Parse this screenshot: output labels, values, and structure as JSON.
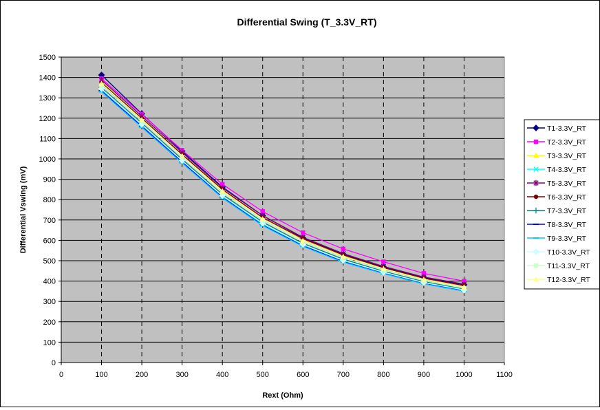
{
  "chart_data": {
    "type": "line",
    "title": "Differential Swing (T_3.3V_RT)",
    "xlabel": "Rext (Ohm)",
    "ylabel": "Differential Vswing (mV)",
    "xlim": [
      0,
      1100
    ],
    "ylim": [
      0,
      1500
    ],
    "x_ticks": [
      "0",
      "100",
      "200",
      "300",
      "400",
      "500",
      "600",
      "700",
      "800",
      "900",
      "1000",
      "1100"
    ],
    "y_ticks": [
      "0",
      "100",
      "200",
      "300",
      "400",
      "500",
      "600",
      "700",
      "800",
      "900",
      "1000",
      "1100",
      "1200",
      "1300",
      "1400",
      "1500"
    ],
    "grid": true,
    "legend_position": "right",
    "plot_background": "#c0c0c0",
    "x": [
      100,
      200,
      300,
      400,
      500,
      600,
      700,
      800,
      900,
      1000
    ],
    "series": [
      {
        "name": "T1-3.3V_RT",
        "color": "#000080",
        "marker": "diamond",
        "values": [
          1412,
          1222,
          1038,
          862,
          722,
          612,
          532,
          470,
          418,
          382
        ]
      },
      {
        "name": "T2-3.3V_RT",
        "color": "#ff00ff",
        "marker": "square",
        "values": [
          1395,
          1220,
          1043,
          876,
          742,
          638,
          558,
          495,
          438,
          400
        ]
      },
      {
        "name": "T3-3.3V_RT",
        "color": "#ffff00",
        "marker": "triangle",
        "values": [
          1378,
          1198,
          1022,
          848,
          712,
          606,
          526,
          465,
          412,
          377
        ]
      },
      {
        "name": "T4-3.3V_RT",
        "color": "#00ffff",
        "marker": "x",
        "values": [
          1342,
          1168,
          990,
          818,
          680,
          578,
          500,
          443,
          394,
          358
        ]
      },
      {
        "name": "T5-3.3V_RT",
        "color": "#800080",
        "marker": "star",
        "values": [
          1388,
          1210,
          1032,
          858,
          722,
          615,
          535,
          472,
          420,
          385
        ]
      },
      {
        "name": "T6-3.3V_RT",
        "color": "#800000",
        "marker": "circle",
        "values": [
          1375,
          1200,
          1022,
          850,
          712,
          608,
          528,
          466,
          414,
          378
        ]
      },
      {
        "name": "T7-3.3V_RT",
        "color": "#008080",
        "marker": "plus",
        "values": [
          1350,
          1175,
          998,
          825,
          690,
          585,
          508,
          448,
          398,
          362
        ]
      },
      {
        "name": "T8-3.3V_RT",
        "color": "#0000ff",
        "marker": "dash",
        "values": [
          1335,
          1160,
          985,
          812,
          675,
          573,
          496,
          438,
          388,
          354
        ]
      },
      {
        "name": "T9-3.3V_RT",
        "color": "#00ccff",
        "marker": "dash",
        "values": [
          1330,
          1155,
          980,
          808,
          672,
          570,
          493,
          436,
          386,
          350
        ]
      },
      {
        "name": "T10-3.3V_RT",
        "color": "#ccffff",
        "marker": "diamond",
        "values": [
          1345,
          1170,
          992,
          820,
          684,
          580,
          502,
          444,
          393,
          356
        ]
      },
      {
        "name": "T11-3.3V_RT",
        "color": "#ccffcc",
        "marker": "square",
        "values": [
          1360,
          1185,
          1008,
          835,
          698,
          592,
          513,
          453,
          402,
          365
        ]
      },
      {
        "name": "T12-3.3V_RT",
        "color": "#ffff99",
        "marker": "triangle",
        "values": [
          1370,
          1192,
          1015,
          842,
          705,
          598,
          520,
          460,
          408,
          370
        ]
      }
    ]
  }
}
